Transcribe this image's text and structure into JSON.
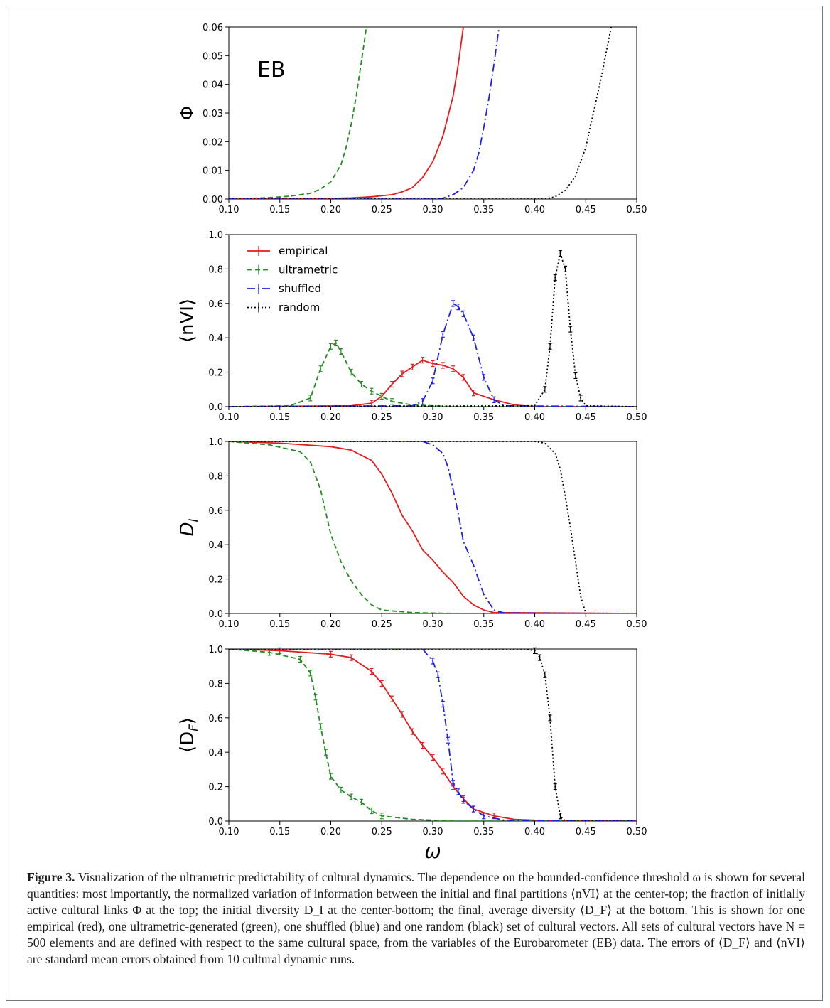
{
  "figure": {
    "caption_label": "Figure 3.",
    "caption_text": "Visualization of the ultrametric predictability of cultural dynamics. The dependence on the bounded-confidence threshold ω is shown for several quantities: most importantly, the normalized variation of information between the initial and final partitions ⟨nVI⟩ at the center-top; the fraction of initially active cultural links Φ at the top; the initial diversity D_I at the center-bottom; the final, average diversity ⟨D_F⟩ at the bottom. This is shown for one empirical (red), one ultrametric-generated (green), one shuffled (blue) and one random (black) set of cultural vectors. All sets of cultural vectors have N = 500 elements and are defined with respect to the same cultural space, from the variables of the Eurobarometer (EB) data. The errors of ⟨D_F⟩ and ⟨nVI⟩ are standard mean errors obtained from 10 cultural dynamic runs."
  },
  "colors": {
    "empirical": "#e41a1c",
    "ultrametric": "#228b22",
    "shuffled": "#1f1fe0",
    "random": "#000000"
  },
  "chart_data": [
    {
      "type": "line",
      "ylabel": "Φ",
      "xlabel": "",
      "annotation": "EB",
      "xlim": [
        0.1,
        0.5
      ],
      "ylim": [
        0,
        0.06
      ],
      "xticks": [
        "0.10",
        "0.15",
        "0.20",
        "0.25",
        "0.30",
        "0.35",
        "0.40",
        "0.45",
        "0.50"
      ],
      "yticks": [
        "0.00",
        "0.01",
        "0.02",
        "0.03",
        "0.04",
        "0.05",
        "0.06"
      ],
      "series": [
        {
          "key": "ultrametric",
          "x": [
            0.1,
            0.14,
            0.16,
            0.18,
            0.19,
            0.2,
            0.21,
            0.215,
            0.22,
            0.225,
            0.23,
            0.235
          ],
          "y": [
            0,
            0.0005,
            0.001,
            0.002,
            0.0035,
            0.006,
            0.012,
            0.018,
            0.026,
            0.036,
            0.048,
            0.06
          ]
        },
        {
          "key": "empirical",
          "x": [
            0.1,
            0.2,
            0.22,
            0.24,
            0.26,
            0.27,
            0.28,
            0.29,
            0.3,
            0.31,
            0.32,
            0.325,
            0.33
          ],
          "y": [
            0,
            0.0002,
            0.0004,
            0.0008,
            0.0015,
            0.0025,
            0.004,
            0.0075,
            0.013,
            0.022,
            0.036,
            0.047,
            0.06
          ]
        },
        {
          "key": "shuffled",
          "x": [
            0.1,
            0.3,
            0.31,
            0.32,
            0.33,
            0.34,
            0.345,
            0.35,
            0.355,
            0.36,
            0.365
          ],
          "y": [
            0,
            0,
            0.0003,
            0.0015,
            0.004,
            0.01,
            0.016,
            0.025,
            0.035,
            0.047,
            0.06
          ]
        },
        {
          "key": "random",
          "x": [
            0.1,
            0.41,
            0.42,
            0.43,
            0.44,
            0.45,
            0.455,
            0.46,
            0.465,
            0.47,
            0.475
          ],
          "y": [
            0,
            0,
            0.0008,
            0.003,
            0.008,
            0.018,
            0.026,
            0.034,
            0.042,
            0.051,
            0.06
          ]
        }
      ]
    },
    {
      "type": "line",
      "ylabel": "⟨nVI⟩",
      "xlabel": "",
      "xlim": [
        0.1,
        0.5
      ],
      "ylim": [
        0,
        1.0
      ],
      "xticks": [
        "0.10",
        "0.15",
        "0.20",
        "0.25",
        "0.30",
        "0.35",
        "0.40",
        "0.45",
        "0.50"
      ],
      "yticks": [
        "0.0",
        "0.2",
        "0.4",
        "0.6",
        "0.8",
        "1.0"
      ],
      "legend": [
        "empirical",
        "ultrametric",
        "shuffled",
        "random"
      ],
      "legend_position": "top-left",
      "series": [
        {
          "key": "empirical",
          "errorbars": true,
          "x": [
            0.1,
            0.22,
            0.24,
            0.25,
            0.26,
            0.27,
            0.28,
            0.29,
            0.3,
            0.31,
            0.32,
            0.33,
            0.34,
            0.36,
            0.38,
            0.4,
            0.5
          ],
          "y": [
            0,
            0.005,
            0.02,
            0.06,
            0.13,
            0.19,
            0.23,
            0.27,
            0.25,
            0.24,
            0.22,
            0.17,
            0.08,
            0.04,
            0.01,
            0,
            0
          ]
        },
        {
          "key": "ultrametric",
          "errorbars": true,
          "x": [
            0.1,
            0.16,
            0.18,
            0.19,
            0.2,
            0.205,
            0.21,
            0.22,
            0.23,
            0.24,
            0.25,
            0.26,
            0.28,
            0.32,
            0.5
          ],
          "y": [
            0,
            0.005,
            0.05,
            0.22,
            0.35,
            0.37,
            0.32,
            0.2,
            0.13,
            0.09,
            0.06,
            0.03,
            0.01,
            0,
            0
          ]
        },
        {
          "key": "shuffled",
          "errorbars": true,
          "x": [
            0.1,
            0.28,
            0.29,
            0.3,
            0.31,
            0.32,
            0.325,
            0.33,
            0.34,
            0.35,
            0.36,
            0.37,
            0.5
          ],
          "y": [
            0,
            0.005,
            0.03,
            0.15,
            0.42,
            0.6,
            0.58,
            0.54,
            0.4,
            0.17,
            0.04,
            0.005,
            0
          ]
        },
        {
          "key": "random",
          "errorbars": true,
          "x": [
            0.1,
            0.4,
            0.41,
            0.415,
            0.42,
            0.425,
            0.43,
            0.435,
            0.44,
            0.445,
            0.45,
            0.5
          ],
          "y": [
            0,
            0.005,
            0.1,
            0.35,
            0.75,
            0.89,
            0.8,
            0.45,
            0.18,
            0.05,
            0.005,
            0
          ]
        }
      ]
    },
    {
      "type": "line",
      "ylabel": "D_I",
      "xlabel": "",
      "xlim": [
        0.1,
        0.5
      ],
      "ylim": [
        0,
        1.0
      ],
      "xticks": [
        "0.10",
        "0.15",
        "0.20",
        "0.25",
        "0.30",
        "0.35",
        "0.40",
        "0.45",
        "0.50"
      ],
      "yticks": [
        "0.0",
        "0.2",
        "0.4",
        "0.6",
        "0.8",
        "1.0"
      ],
      "series": [
        {
          "key": "empirical",
          "x": [
            0.1,
            0.15,
            0.2,
            0.22,
            0.24,
            0.25,
            0.26,
            0.27,
            0.28,
            0.29,
            0.3,
            0.31,
            0.32,
            0.33,
            0.34,
            0.35,
            0.36,
            0.5
          ],
          "y": [
            1.0,
            0.99,
            0.97,
            0.95,
            0.89,
            0.81,
            0.7,
            0.57,
            0.48,
            0.37,
            0.31,
            0.24,
            0.18,
            0.1,
            0.05,
            0.02,
            0.005,
            0
          ]
        },
        {
          "key": "ultrametric",
          "x": [
            0.1,
            0.14,
            0.17,
            0.18,
            0.19,
            0.2,
            0.21,
            0.22,
            0.23,
            0.24,
            0.25,
            0.28,
            0.32,
            0.5
          ],
          "y": [
            1.0,
            0.98,
            0.94,
            0.88,
            0.72,
            0.46,
            0.3,
            0.19,
            0.11,
            0.05,
            0.02,
            0.005,
            0,
            0
          ]
        },
        {
          "key": "shuffled",
          "x": [
            0.1,
            0.29,
            0.3,
            0.31,
            0.315,
            0.32,
            0.325,
            0.33,
            0.34,
            0.35,
            0.36,
            0.37,
            0.5
          ],
          "y": [
            1.0,
            1.0,
            0.98,
            0.93,
            0.85,
            0.72,
            0.58,
            0.42,
            0.28,
            0.11,
            0.02,
            0.003,
            0
          ]
        },
        {
          "key": "random",
          "x": [
            0.1,
            0.4,
            0.41,
            0.42,
            0.425,
            0.43,
            0.435,
            0.44,
            0.445,
            0.45,
            0.5
          ],
          "y": [
            1.0,
            1.0,
            0.99,
            0.93,
            0.84,
            0.68,
            0.5,
            0.3,
            0.1,
            0,
            0
          ]
        }
      ]
    },
    {
      "type": "line",
      "ylabel": "⟨D_F⟩",
      "xlabel": "ω",
      "xlim": [
        0.1,
        0.5
      ],
      "ylim": [
        0,
        1.0
      ],
      "xticks": [
        "0.10",
        "0.15",
        "0.20",
        "0.25",
        "0.30",
        "0.35",
        "0.40",
        "0.45",
        "0.50"
      ],
      "yticks": [
        "0.0",
        "0.2",
        "0.4",
        "0.6",
        "0.8",
        "1.0"
      ],
      "series": [
        {
          "key": "empirical",
          "errorbars": true,
          "x": [
            0.1,
            0.15,
            0.2,
            0.22,
            0.24,
            0.25,
            0.26,
            0.27,
            0.28,
            0.29,
            0.3,
            0.31,
            0.32,
            0.33,
            0.34,
            0.36,
            0.38,
            0.4,
            0.5
          ],
          "y": [
            1.0,
            0.99,
            0.97,
            0.95,
            0.87,
            0.8,
            0.71,
            0.62,
            0.52,
            0.44,
            0.37,
            0.29,
            0.2,
            0.13,
            0.07,
            0.03,
            0.01,
            0.005,
            0
          ]
        },
        {
          "key": "ultrametric",
          "errorbars": true,
          "x": [
            0.1,
            0.14,
            0.17,
            0.18,
            0.185,
            0.19,
            0.195,
            0.2,
            0.21,
            0.22,
            0.23,
            0.24,
            0.25,
            0.28,
            0.32,
            0.5
          ],
          "y": [
            1.0,
            0.98,
            0.94,
            0.86,
            0.72,
            0.55,
            0.4,
            0.26,
            0.18,
            0.14,
            0.11,
            0.06,
            0.03,
            0.01,
            0,
            0
          ]
        },
        {
          "key": "shuffled",
          "errorbars": true,
          "x": [
            0.1,
            0.29,
            0.3,
            0.305,
            0.31,
            0.315,
            0.32,
            0.325,
            0.33,
            0.34,
            0.35,
            0.37,
            0.5
          ],
          "y": [
            1.0,
            1.0,
            0.93,
            0.85,
            0.68,
            0.47,
            0.22,
            0.17,
            0.12,
            0.07,
            0.03,
            0.005,
            0
          ]
        },
        {
          "key": "random",
          "errorbars": true,
          "x": [
            0.1,
            0.39,
            0.4,
            0.405,
            0.41,
            0.415,
            0.42,
            0.425,
            0.43,
            0.5
          ],
          "y": [
            1.0,
            1.0,
            0.99,
            0.95,
            0.85,
            0.6,
            0.2,
            0.03,
            0,
            0
          ]
        }
      ]
    }
  ]
}
